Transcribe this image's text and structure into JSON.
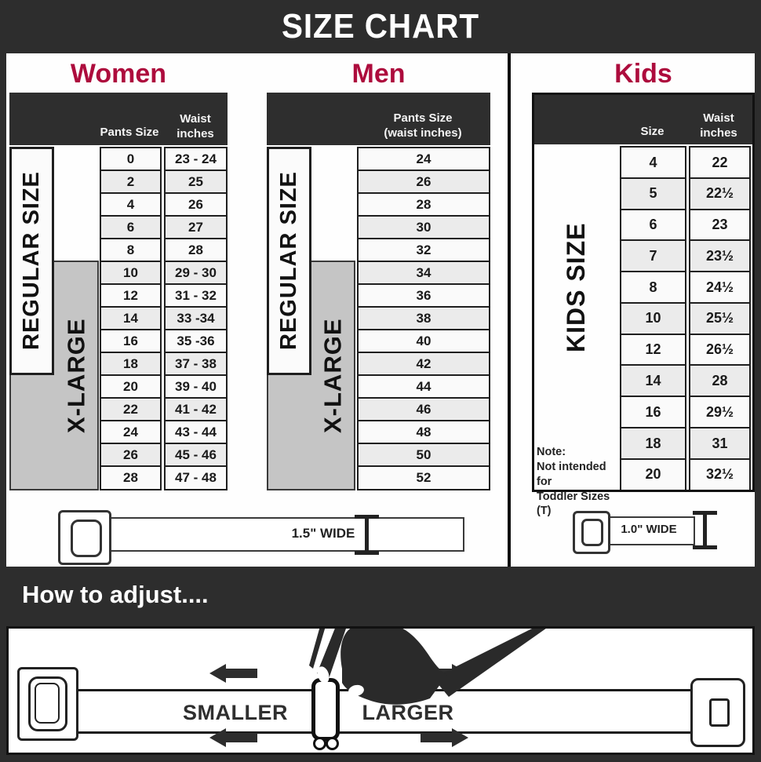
{
  "title": "SIZE CHART",
  "sections": {
    "women": {
      "label": "Women",
      "regular_label": "REGULAR SIZE",
      "xlarge_label": "X-LARGE",
      "col1_header": "Pants Size",
      "col2_header_line1": "Waist",
      "col2_header_line2": "inches",
      "rows": [
        {
          "size": "0",
          "waist": "23 - 24"
        },
        {
          "size": "2",
          "waist": "25"
        },
        {
          "size": "4",
          "waist": "26"
        },
        {
          "size": "6",
          "waist": "27"
        },
        {
          "size": "8",
          "waist": "28"
        },
        {
          "size": "10",
          "waist": "29 - 30"
        },
        {
          "size": "12",
          "waist": "31 - 32"
        },
        {
          "size": "14",
          "waist": "33 -34"
        },
        {
          "size": "16",
          "waist": "35 -36"
        },
        {
          "size": "18",
          "waist": "37 - 38"
        },
        {
          "size": "20",
          "waist": "39 - 40"
        },
        {
          "size": "22",
          "waist": "41 - 42"
        },
        {
          "size": "24",
          "waist": "43 - 44"
        },
        {
          "size": "26",
          "waist": "45 - 46"
        },
        {
          "size": "28",
          "waist": "47 - 48"
        }
      ],
      "belt_width_label": "1.5\" WIDE"
    },
    "men": {
      "label": "Men",
      "regular_label": "REGULAR SIZE",
      "xlarge_label": "X-LARGE",
      "col_header_line1": "Pants Size",
      "col_header_line2": "(waist inches)",
      "rows": [
        "24",
        "26",
        "28",
        "30",
        "32",
        "34",
        "36",
        "38",
        "40",
        "42",
        "44",
        "46",
        "48",
        "50",
        "52"
      ]
    },
    "kids": {
      "label": "Kids",
      "side_label": "KIDS SIZE",
      "col1_header": "Size",
      "col2_header_line1": "Waist",
      "col2_header_line2": "inches",
      "rows": [
        {
          "size": "4",
          "waist": "22"
        },
        {
          "size": "5",
          "waist": "22½"
        },
        {
          "size": "6",
          "waist": "23"
        },
        {
          "size": "7",
          "waist": "23½"
        },
        {
          "size": "8",
          "waist": "24½"
        },
        {
          "size": "10",
          "waist": "25½"
        },
        {
          "size": "12",
          "waist": "26½"
        },
        {
          "size": "14",
          "waist": "28"
        },
        {
          "size": "16",
          "waist": "29½"
        },
        {
          "size": "18",
          "waist": "31"
        },
        {
          "size": "20",
          "waist": "32½"
        }
      ],
      "note_line1": "Note:",
      "note_line2": "Not intended for",
      "note_line3": "Toddler Sizes (T)",
      "belt_width_label": "1.0\" WIDE"
    }
  },
  "adjust": {
    "heading": "How to adjust....",
    "smaller_label": "SMALLER",
    "larger_label": "LARGER"
  },
  "colors": {
    "banner": "#2d2d2d",
    "accent": "#ad0c3d",
    "gray_region": "#c5c5c5"
  }
}
